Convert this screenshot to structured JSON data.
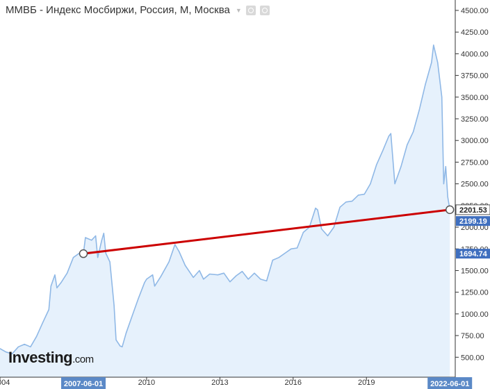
{
  "header": {
    "title": "ММВБ - Индекс Мосбиржи, Россия, М, Москва",
    "icons": [
      "chevron-down-icon",
      "eye-icon",
      "settings-icon"
    ]
  },
  "logo": {
    "brand": "Investing",
    "domain": ".com"
  },
  "colors": {
    "series_line": "#8fb8e6",
    "series_fill": "#e6f1fc",
    "trend_line": "#cc0000",
    "badge_blue": "#3f6fbf",
    "axis_badge": "#5b89c7"
  },
  "chart_data": {
    "type": "area",
    "title": "ММВБ - Индекс Мосбиржи, Россия, М, Москва",
    "xlabel": "",
    "ylabel": "",
    "ylim": [
      270,
      4620
    ],
    "xlim": [
      "2004-01-01",
      "2022-06-30"
    ],
    "y_ticks": [
      "500.00",
      "750.00",
      "1000.00",
      "1250.00",
      "1500.00",
      "1750.00",
      "2000.00",
      "2250.00",
      "2500.00",
      "2750.00",
      "3000.00",
      "3250.00",
      "3500.00",
      "3750.00",
      "4000.00",
      "4250.00",
      "4500.00"
    ],
    "x_ticks": [
      "004",
      "2010",
      "2013",
      "2016",
      "2019"
    ],
    "x_tick_dates": [
      "2004-01-01",
      "2010-01-01",
      "2013-01-01",
      "2016-01-01",
      "2019-01-01"
    ],
    "grid": false,
    "legend": "none",
    "series": [
      {
        "x": [
          "2004-01-01",
          "2004-04-01",
          "2004-07-01",
          "2004-10-01",
          "2005-01-01",
          "2005-04-01",
          "2005-07-01",
          "2005-10-01",
          "2006-01-01",
          "2006-02-01",
          "2006-04-01",
          "2006-05-01",
          "2006-07-01",
          "2006-10-01",
          "2007-01-01",
          "2007-04-01",
          "2007-06-01",
          "2007-07-01",
          "2007-10-01",
          "2007-12-01",
          "2008-01-01",
          "2008-03-01",
          "2008-04-01",
          "2008-05-01",
          "2008-07-01",
          "2008-09-01",
          "2008-10-01",
          "2008-12-01",
          "2009-01-01",
          "2009-03-01",
          "2009-06-01",
          "2009-09-01",
          "2009-12-01",
          "2010-01-01",
          "2010-04-01",
          "2010-05-01",
          "2010-08-01",
          "2010-12-01",
          "2011-03-01",
          "2011-05-01",
          "2011-08-01",
          "2011-10-01",
          "2011-12-01",
          "2012-03-01",
          "2012-05-01",
          "2012-08-01",
          "2012-12-01",
          "2013-03-01",
          "2013-06-01",
          "2013-09-01",
          "2013-12-01",
          "2014-03-01",
          "2014-06-01",
          "2014-09-01",
          "2014-12-01",
          "2015-03-01",
          "2015-06-01",
          "2015-09-01",
          "2015-12-01",
          "2016-03-01",
          "2016-06-01",
          "2016-09-01",
          "2016-12-01",
          "2017-01-01",
          "2017-03-01",
          "2017-06-01",
          "2017-09-01",
          "2017-12-01",
          "2018-03-01",
          "2018-06-01",
          "2018-09-01",
          "2018-12-01",
          "2019-03-01",
          "2019-06-01",
          "2019-09-01",
          "2019-12-01",
          "2020-01-01",
          "2020-03-01",
          "2020-06-01",
          "2020-09-01",
          "2020-12-01",
          "2021-03-01",
          "2021-06-01",
          "2021-09-01",
          "2021-10-01",
          "2021-12-01",
          "2022-01-01",
          "2022-02-01",
          "2022-03-01",
          "2022-04-01",
          "2022-05-01",
          "2022-06-01"
        ],
        "values": [
          600,
          560,
          540,
          620,
          650,
          620,
          740,
          900,
          1050,
          1320,
          1450,
          1300,
          1360,
          1470,
          1650,
          1700,
          1694.74,
          1880,
          1850,
          1900,
          1650,
          1850,
          1930,
          1700,
          1600,
          1100,
          700,
          630,
          620,
          780,
          980,
          1180,
          1360,
          1400,
          1450,
          1320,
          1430,
          1600,
          1800,
          1720,
          1560,
          1490,
          1420,
          1500,
          1400,
          1460,
          1450,
          1470,
          1370,
          1440,
          1490,
          1400,
          1470,
          1400,
          1380,
          1620,
          1650,
          1700,
          1750,
          1760,
          1940,
          2000,
          2220,
          2200,
          1980,
          1900,
          2000,
          2230,
          2290,
          2300,
          2370,
          2380,
          2500,
          2720,
          2880,
          3050,
          3080,
          2500,
          2700,
          2950,
          3100,
          3350,
          3650,
          3900,
          4100,
          3900,
          3700,
          3500,
          2500,
          2700,
          2350,
          2201.53
        ]
      }
    ],
    "trendline": {
      "start": {
        "x": "2007-06-01",
        "y": 1694.74
      },
      "end": {
        "x": "2022-06-01",
        "y": 2201.53
      }
    },
    "badges": {
      "current": "2201.53",
      "cross": "2199.19",
      "start": "1694.74",
      "x_start": "2007-06-01",
      "x_end": "2022-06-01"
    }
  }
}
